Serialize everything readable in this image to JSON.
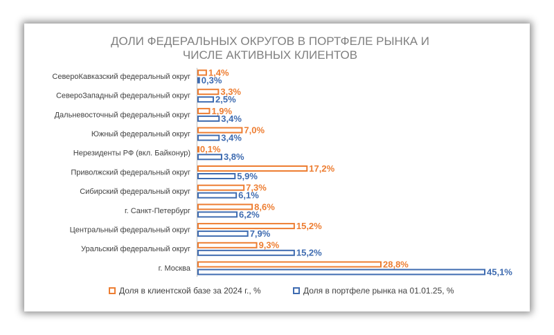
{
  "chart_data": {
    "type": "hbar",
    "title": "ДОЛИ ФЕДЕРАЛЬНЫХ ОКРУГОВ В ПОРТФЕЛЕ РЫНКА И ЧИСЛЕ АКТИВНЫХ КЛИЕНТОВ",
    "categories": [
      "СевероКавказский федеральный округ",
      "СевероЗападный федеральный округ",
      "Дальневосточный федеральный округ",
      "Южный федеральный округ",
      "Нерезиденты РФ (вкл. Байконур)",
      "Приволжский федеральный округ",
      "Сибирский федеральный округ",
      "г. Санкт-Петербург",
      "Центральный федеральный округ",
      "Уральский федеральный округ",
      "г. Москва"
    ],
    "series": [
      {
        "name": "Доля в клиентской базе за 2024 г., %",
        "color": "#ED7D31",
        "values": [
          1.4,
          3.3,
          1.9,
          7.0,
          0.1,
          17.2,
          7.3,
          8.6,
          15.2,
          9.3,
          28.8
        ],
        "value_labels": [
          "1,4%",
          "3,3%",
          "1,9%",
          "7,0%",
          "0,1%",
          "17,2%",
          "7,3%",
          "8,6%",
          "15,2%",
          "9,3%",
          "28,8%"
        ]
      },
      {
        "name": "Доля в портфеле рынка на 01.01.25, %",
        "color": "#3E6BB0",
        "values": [
          0.3,
          2.5,
          3.4,
          3.4,
          3.8,
          5.9,
          6.1,
          6.2,
          7.9,
          15.2,
          45.1
        ],
        "value_labels": [
          "0,3%",
          "2,5%",
          "3,4%",
          "3,4%",
          "3,8%",
          "5,9%",
          "6,1%",
          "6,2%",
          "7,9%",
          "15,2%",
          "45,1%"
        ]
      }
    ]
  }
}
